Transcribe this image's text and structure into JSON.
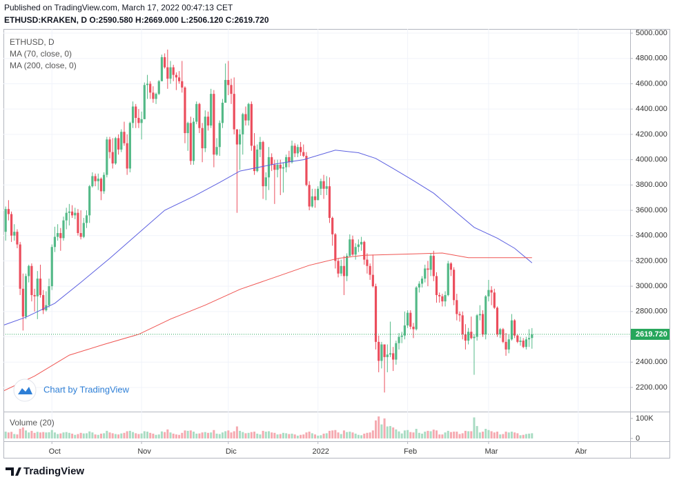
{
  "chart_data": {
    "type": "candlestick",
    "published": "Published on TradingView.com, March 17, 2022 00:47:13 CET",
    "subtitle": "ETHUSD:KRAKEN, D  O:2590.580 H:2669.000 L:2506.120 C:2619.720",
    "title": "ETHUSD, D",
    "volume_label": "Volume (20)",
    "watermark": "Chart by TradingView",
    "footer": "TradingView",
    "up_color": "#53b987",
    "down_color": "#eb4d5c",
    "volume_up_color": "#a9dcc3",
    "volume_down_color": "#f5a9b0",
    "grid": true,
    "ylim": [
      2009,
      5033
    ],
    "yticks": [
      {
        "value": 2200,
        "label": "2200.000"
      },
      {
        "value": 2400,
        "label": "2400.000"
      },
      {
        "value": 2600,
        "label": "2600.000"
      },
      {
        "value": 2800,
        "label": "2800.000"
      },
      {
        "value": 3000,
        "label": "3000.000"
      },
      {
        "value": 3200,
        "label": "3200.000"
      },
      {
        "value": 3400,
        "label": "3400.000"
      },
      {
        "value": 3600,
        "label": "3600.000"
      },
      {
        "value": 3800,
        "label": "3800.000"
      },
      {
        "value": 4000,
        "label": "4000.000"
      },
      {
        "value": 4200,
        "label": "4200.000"
      },
      {
        "value": 4400,
        "label": "4400.000"
      },
      {
        "value": 4600,
        "label": "4600.000"
      },
      {
        "value": 4800,
        "label": "4800.000"
      },
      {
        "value": 5000,
        "label": "5000.000"
      }
    ],
    "xticks": [
      {
        "value": 17,
        "label": "Oct"
      },
      {
        "value": 48,
        "label": "Nov"
      },
      {
        "value": 78,
        "label": "Dic"
      },
      {
        "value": 109,
        "label": "2022"
      },
      {
        "value": 140,
        "label": "Feb"
      },
      {
        "value": 168,
        "label": "Mar"
      },
      {
        "value": 199,
        "label": "Abr"
      }
    ],
    "last_price": {
      "value": 2619.72,
      "label": "2619.720",
      "color": "#26a65b"
    },
    "open": [
      3290,
      3430,
      3610,
      3570,
      3400,
      3430,
      3330,
      2980,
      2760,
      3080,
      3160,
      2930,
      2920,
      3060,
      2930,
      2810,
      2850,
      3000,
      3310,
      3390,
      3420,
      3380,
      3520,
      3580,
      3590,
      3560,
      3580,
      3420,
      3390,
      3500,
      3560,
      3790,
      3870,
      3830,
      3850,
      3750,
      3880,
      4160,
      4060,
      3970,
      4170,
      4080,
      4220,
      4130,
      3930,
      4290,
      4420,
      4330,
      4290,
      4320,
      4590,
      4600,
      4530,
      4480,
      4520,
      4620,
      4810,
      4730,
      4640,
      4730,
      4670,
      4650,
      4620,
      4570,
      4210,
      4290,
      3990,
      4300,
      4440,
      4250,
      4090,
      4340,
      4270,
      4520,
      4040,
      4100,
      4290,
      4450,
      4630,
      4590,
      4520,
      4240,
      4120,
      4200,
      4360,
      4310,
      4440,
      4110,
      3910,
      4080,
      4140,
      3790,
      3860,
      4020,
      3960,
      3920,
      3960,
      3930,
      3940,
      4020,
      3980,
      4110,
      4050,
      4100,
      4060,
      4030,
      3800,
      3630,
      3710,
      3680,
      3770,
      3830,
      3770,
      3790,
      3540,
      3410,
      3200,
      3100,
      3160,
      3080,
      3240,
      3370,
      3250,
      3310,
      3330,
      3350,
      3210,
      3160,
      3090,
      3000,
      2560,
      2410,
      2540,
      2440,
      2460,
      2470,
      2420,
      2550,
      2600,
      2610,
      2690,
      2790,
      2680,
      2660,
      2990,
      3020,
      3060,
      3140,
      3130,
      3240,
      3080,
      2930,
      2920,
      2880,
      2930,
      3180,
      3130,
      2890,
      2780,
      2770,
      2620,
      2570,
      2640,
      2590,
      2600,
      2770,
      2780,
      2620,
      2920,
      2970,
      2950,
      2830,
      2620,
      2660,
      2560,
      2500,
      2580,
      2730,
      2610,
      2560,
      2570,
      2520,
      2580,
      2590.58
    ],
    "high": [
      3470,
      3630,
      3680,
      3590,
      3490,
      3450,
      3350,
      3100,
      3100,
      3170,
      3180,
      2980,
      3120,
      3170,
      2970,
      2960,
      3060,
      3330,
      3470,
      3490,
      3460,
      3550,
      3620,
      3650,
      3640,
      3620,
      3610,
      3600,
      3540,
      3600,
      3800,
      3900,
      3890,
      3890,
      3860,
      3900,
      4180,
      4180,
      4170,
      4180,
      4200,
      4240,
      4300,
      4200,
      4300,
      4460,
      4440,
      4400,
      4380,
      4610,
      4670,
      4620,
      4580,
      4530,
      4630,
      4830,
      4840,
      4870,
      4780,
      4750,
      4690,
      4700,
      4780,
      4580,
      4300,
      4340,
      4330,
      4460,
      4450,
      4290,
      4390,
      4380,
      4560,
      4550,
      4170,
      4310,
      4480,
      4760,
      4780,
      4640,
      4650,
      4240,
      4240,
      4370,
      4420,
      4450,
      4460,
      4210,
      4120,
      4180,
      4150,
      3900,
      4100,
      4050,
      4000,
      4000,
      4000,
      3980,
      4040,
      4070,
      4150,
      4130,
      4120,
      4140,
      4120,
      4060,
      3830,
      3770,
      3770,
      3790,
      3850,
      3880,
      3870,
      3860,
      3550,
      3420,
      3220,
      3210,
      3240,
      3260,
      3410,
      3400,
      3340,
      3370,
      3390,
      3360,
      3260,
      3180,
      3250,
      3020,
      2610,
      2560,
      2540,
      2540,
      2720,
      2520,
      2570,
      2630,
      2640,
      2800,
      2810,
      2810,
      2710,
      3000,
      3040,
      3080,
      3170,
      3200,
      3260,
      3280,
      3110,
      2950,
      2940,
      2960,
      3200,
      3190,
      3150,
      2940,
      2800,
      2800,
      2700,
      2670,
      2760,
      2620,
      2780,
      2850,
      2810,
      2930,
      3050,
      3000,
      2980,
      2840,
      2670,
      2670,
      2630,
      2620,
      2780,
      2740,
      2620,
      2600,
      2590,
      2600,
      2660,
      2669
    ],
    "low": [
      3270,
      3360,
      3520,
      3350,
      3360,
      3300,
      2930,
      2650,
      2740,
      3030,
      2880,
      2800,
      2740,
      2910,
      2780,
      2800,
      2830,
      2970,
      3270,
      3360,
      3280,
      3360,
      3450,
      3480,
      3540,
      3530,
      3400,
      3370,
      3380,
      3460,
      3500,
      3780,
      3790,
      3760,
      3680,
      3730,
      3860,
      4010,
      3930,
      3960,
      4040,
      4060,
      4110,
      3880,
      3900,
      4250,
      4250,
      4250,
      4160,
      4320,
      4480,
      4480,
      4450,
      4440,
      4510,
      4620,
      4720,
      4560,
      4600,
      4620,
      4550,
      4600,
      4530,
      4130,
      4070,
      3960,
      3960,
      4280,
      4210,
      3980,
      4060,
      4230,
      4250,
      3940,
      4030,
      4030,
      4250,
      4450,
      4510,
      4440,
      4200,
      3580,
      3920,
      4040,
      4270,
      4270,
      4070,
      3880,
      3900,
      4020,
      3690,
      3680,
      3760,
      3910,
      3650,
      3860,
      3720,
      3740,
      3900,
      3940,
      3970,
      4020,
      4020,
      4030,
      4020,
      3790,
      3600,
      3620,
      3620,
      3680,
      3720,
      3690,
      3720,
      3500,
      3320,
      3140,
      3070,
      3080,
      2930,
      3040,
      3230,
      3240,
      3210,
      3270,
      3280,
      3170,
      3100,
      3050,
      2990,
      2500,
      2320,
      2350,
      2160,
      2320,
      2440,
      2330,
      2380,
      2500,
      2550,
      2580,
      2670,
      2660,
      2590,
      2650,
      2950,
      2990,
      3030,
      3000,
      3080,
      3040,
      2870,
      2870,
      2840,
      2840,
      2920,
      3080,
      2850,
      2730,
      2720,
      2580,
      2500,
      2540,
      2580,
      2300,
      2570,
      2730,
      2600,
      2580,
      2880,
      2850,
      2820,
      2600,
      2590,
      2550,
      2450,
      2470,
      2570,
      2590,
      2550,
      2530,
      2510,
      2500,
      2520,
      2506.12
    ],
    "close": [
      3430,
      3610,
      3570,
      3400,
      3430,
      3330,
      2980,
      2760,
      3080,
      3160,
      2930,
      2920,
      3060,
      2930,
      2810,
      2850,
      3000,
      3310,
      3390,
      3420,
      3380,
      3520,
      3580,
      3590,
      3560,
      3580,
      3420,
      3390,
      3500,
      3560,
      3790,
      3870,
      3830,
      3850,
      3750,
      3880,
      4160,
      4060,
      3970,
      4170,
      4080,
      4220,
      4130,
      3930,
      4290,
      4420,
      4330,
      4290,
      4320,
      4590,
      4600,
      4530,
      4480,
      4520,
      4620,
      4810,
      4730,
      4640,
      4730,
      4670,
      4650,
      4620,
      4570,
      4210,
      4290,
      3990,
      4300,
      4440,
      4250,
      4090,
      4340,
      4270,
      4520,
      4040,
      4100,
      4290,
      4450,
      4630,
      4590,
      4520,
      4240,
      4120,
      4200,
      4360,
      4310,
      4440,
      4110,
      3910,
      4080,
      4140,
      3790,
      3860,
      4020,
      3960,
      3920,
      3960,
      3930,
      3940,
      4020,
      3980,
      4110,
      4050,
      4100,
      4060,
      4030,
      3800,
      3630,
      3710,
      3680,
      3770,
      3830,
      3770,
      3790,
      3540,
      3410,
      3200,
      3100,
      3160,
      3080,
      3240,
      3370,
      3250,
      3310,
      3330,
      3350,
      3210,
      3160,
      3090,
      3000,
      2560,
      2410,
      2540,
      2440,
      2460,
      2470,
      2420,
      2550,
      2600,
      2610,
      2690,
      2790,
      2680,
      2660,
      2990,
      3020,
      3060,
      3140,
      3130,
      3240,
      3080,
      2930,
      2920,
      2880,
      2930,
      3180,
      3130,
      2890,
      2780,
      2770,
      2620,
      2570,
      2640,
      2590,
      2600,
      2770,
      2780,
      2620,
      2920,
      2970,
      2950,
      2830,
      2620,
      2660,
      2560,
      2500,
      2580,
      2730,
      2610,
      2560,
      2570,
      2520,
      2580,
      2590.58,
      2619.72
    ],
    "volume": [
      32000,
      34000,
      30000,
      33000,
      22000,
      20000,
      48000,
      55000,
      40000,
      30000,
      38000,
      28000,
      33000,
      30000,
      32000,
      30000,
      31000,
      42000,
      30000,
      22000,
      25000,
      30000,
      32000,
      28000,
      24000,
      18000,
      22000,
      28000,
      25000,
      26000,
      35000,
      30000,
      20000,
      18000,
      24000,
      26000,
      38000,
      30000,
      26000,
      22000,
      20000,
      25000,
      28000,
      36000,
      38000,
      32000,
      26000,
      22000,
      25000,
      36000,
      34000,
      28000,
      24000,
      18000,
      20000,
      35000,
      32000,
      45000,
      30000,
      24000,
      20000,
      18000,
      28000,
      40000,
      38000,
      40000,
      34000,
      24000,
      25000,
      30000,
      32000,
      28000,
      30000,
      42000,
      24000,
      22000,
      30000,
      36000,
      40000,
      30000,
      36000,
      60000,
      38000,
      32000,
      26000,
      28000,
      32000,
      34000,
      24000,
      20000,
      38000,
      34000,
      36000,
      30000,
      28000,
      20000,
      22000,
      28000,
      26000,
      22000,
      24000,
      20000,
      14000,
      18000,
      20000,
      30000,
      34000,
      26000,
      20000,
      14000,
      16000,
      24000,
      26000,
      38000,
      40000,
      42000,
      30000,
      22000,
      40000,
      32000,
      34000,
      30000,
      24000,
      18000,
      16000,
      24000,
      28000,
      30000,
      40000,
      90000,
      110000,
      70000,
      100000,
      60000,
      62000,
      55000,
      45000,
      35000,
      25000,
      40000,
      42000,
      32000,
      30000,
      48000,
      28000,
      24000,
      34000,
      38000,
      36000,
      44000,
      40000,
      20000,
      20000,
      30000,
      38000,
      32000,
      34000,
      34000,
      22000,
      26000,
      38000,
      36000,
      36000,
      105000,
      62000,
      30000,
      34000,
      48000,
      42000,
      36000,
      30000,
      34000,
      20000,
      22000,
      34000,
      30000,
      34000,
      30000,
      26000,
      16000,
      18000,
      22000,
      24000,
      26000
    ],
    "vlim": [
      -14000,
      134000
    ],
    "vticks": [
      0,
      {
        "value": 100000,
        "label": "100K"
      }
    ],
    "series": [
      {
        "name": "MA (70, close, 0)",
        "color": "#5a5ee0",
        "x": [
          0,
          8,
          18,
          27,
          37,
          47,
          56,
          66,
          75,
          82,
          94,
          104,
          115,
          123,
          129,
          135,
          142,
          149,
          156,
          163,
          171,
          177,
          183
        ],
        "values": [
          2690,
          2755,
          2865,
          3030,
          3220,
          3420,
          3600,
          3710,
          3820,
          3910,
          3965,
          4000,
          4075,
          4055,
          4010,
          3930,
          3835,
          3735,
          3600,
          3465,
          3380,
          3300,
          3185
        ]
      },
      {
        "name": "MA (200, close, 0)",
        "color": "#ef5350",
        "x": [
          0,
          11,
          23,
          35,
          47,
          58,
          70,
          82,
          94,
          106,
          116,
          125,
          142,
          152,
          161,
          183
        ],
        "values": [
          2170,
          2290,
          2455,
          2540,
          2620,
          2740,
          2850,
          2975,
          3070,
          3165,
          3220,
          3245,
          3255,
          3262,
          3225,
          3225
        ]
      }
    ]
  }
}
